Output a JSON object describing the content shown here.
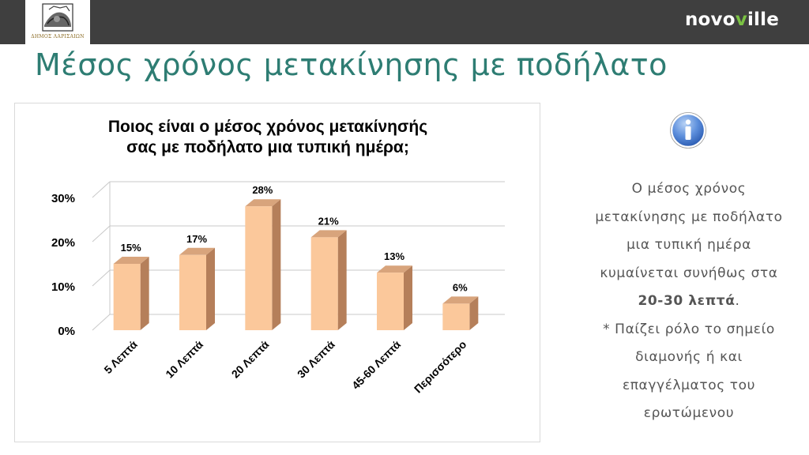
{
  "header": {
    "logo_caption": "ΔΗΜΟΣ ΛΑΡΙΣΑΙΩΝ",
    "brand_prefix": "novo",
    "brand_accent": "v",
    "brand_suffix": "ille",
    "brand_color": "#ffffff",
    "brand_accent_color": "#7ac143"
  },
  "page": {
    "title": "Μέσος χρόνος μετακίνησης με ποδήλατο",
    "title_color": "#2e7d73"
  },
  "chart_data": {
    "type": "bar",
    "title_lines": [
      "Ποιος είναι ο μέσος χρόνος μετακίνησής",
      "σας με ποδήλατο μια τυπική ημέρα;"
    ],
    "categories": [
      "5 Λεπτά",
      "10 Λεπτά",
      "20 Λεπτά",
      "30 Λεπτά",
      "45-60 Λεπτά",
      "Περισσότερο"
    ],
    "values": [
      15,
      17,
      28,
      21,
      13,
      6
    ],
    "value_labels": [
      "15%",
      "17%",
      "28%",
      "21%",
      "13%",
      "6%"
    ],
    "ylim": [
      0,
      30
    ],
    "yticks": [
      0,
      10,
      20,
      30
    ],
    "ytick_labels": [
      "0%",
      "10%",
      "20%",
      "30%"
    ],
    "grid": true,
    "style": "3d",
    "bar_color": "#fbc89b",
    "bar_side_color": "#b57f5a"
  },
  "info_panel": {
    "icon": "info-icon",
    "line1": "Ο μέσος χρόνος",
    "line2": "μετακίνησης με ποδήλατο",
    "line3": "μια τυπική ημέρα",
    "line4": "κυμαίνεται συνήθως στα",
    "line5_bold": "20-30 λεπτά",
    "line5_end": ".",
    "line6": "* Παίζει ρόλο το σημείο",
    "line7": "διαμονής ή και",
    "line8": "επαγγέλματος του",
    "line9": "ερωτώμενου",
    "text_color": "#555555"
  }
}
